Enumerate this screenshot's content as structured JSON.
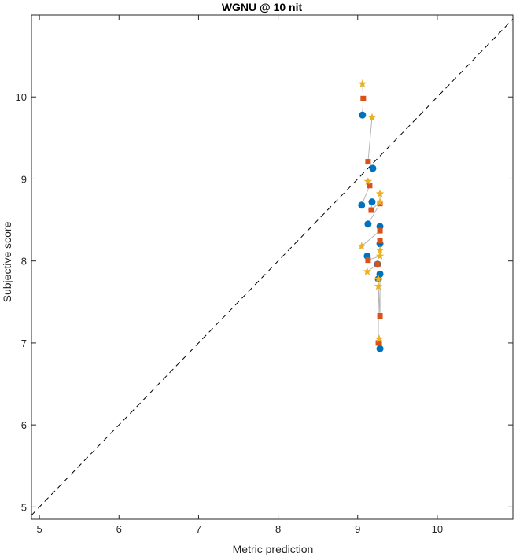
{
  "chart_data": {
    "type": "scatter",
    "title": "WGNU @ 10 nit",
    "xlabel": "Metric prediction",
    "ylabel": "Subjective score",
    "xlim": [
      4.9,
      10.95
    ],
    "ylim": [
      4.85,
      11.0
    ],
    "xticks": [
      5,
      6,
      7,
      8,
      9,
      10
    ],
    "yticks": [
      5,
      6,
      7,
      8,
      9,
      10
    ],
    "grid": false,
    "reference_line": {
      "style": "dashed",
      "color": "#000000",
      "from": [
        4.9,
        4.9
      ],
      "to": [
        10.95,
        10.95
      ]
    },
    "connector_color": "#b4b4b4",
    "groups": [
      {
        "circle": [
          9.06,
          9.78
        ],
        "square": [
          9.07,
          9.98
        ],
        "star": [
          9.06,
          10.16
        ]
      },
      {
        "circle": [
          9.19,
          9.13
        ],
        "square": [
          9.13,
          9.21
        ],
        "star": [
          9.18,
          9.75
        ]
      },
      {
        "circle": [
          9.05,
          8.68
        ],
        "square": [
          9.15,
          8.92
        ],
        "star": [
          9.13,
          8.97
        ]
      },
      {
        "circle": [
          9.18,
          8.72
        ],
        "square": [
          9.17,
          8.62
        ],
        "star": [
          9.28,
          8.72
        ]
      },
      {
        "circle": [
          9.13,
          8.45
        ],
        "square": [
          9.28,
          8.7
        ],
        "star": [
          9.28,
          8.82
        ]
      },
      {
        "circle": [
          9.28,
          8.42
        ],
        "square": [
          9.28,
          8.37
        ],
        "star": [
          9.05,
          8.18
        ]
      },
      {
        "circle": [
          9.28,
          8.21
        ],
        "square": [
          9.28,
          8.25
        ],
        "star": [
          9.28,
          8.13
        ]
      },
      {
        "circle": [
          9.12,
          8.06
        ],
        "square": [
          9.13,
          8.01
        ],
        "star": [
          9.28,
          8.06
        ]
      },
      {
        "circle": [
          9.25,
          7.96
        ],
        "square": [
          9.25,
          7.96
        ],
        "star": [
          9.12,
          7.87
        ]
      },
      {
        "circle": [
          9.28,
          7.84
        ],
        "square": [
          9.28,
          7.33
        ],
        "star": [
          9.26,
          7.69
        ]
      },
      {
        "circle": [
          9.26,
          7.78
        ],
        "square": [
          9.26,
          7.0
        ],
        "star": [
          9.26,
          7.78
        ]
      },
      {
        "circle": [
          9.28,
          6.93
        ],
        "square": [
          9.27,
          7.0
        ],
        "star": [
          9.27,
          7.05
        ]
      }
    ],
    "marker_colors": {
      "circle": "#0072bd",
      "square": "#d95319",
      "star": "#edb120"
    }
  }
}
